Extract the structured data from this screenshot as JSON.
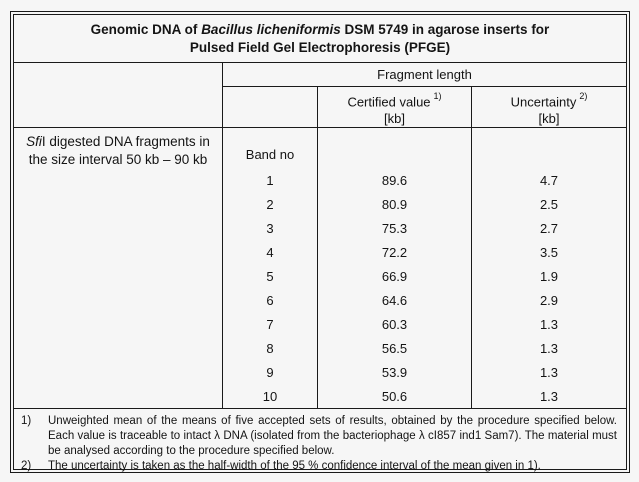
{
  "document": {
    "colors": {
      "background": "#f6f6f6",
      "border": "#1a1a1a",
      "text": "#141414"
    },
    "title": {
      "line1_pre": "Genomic DNA of ",
      "line1_italic": "Bacillus licheniformis",
      "line1_post": " DSM 5749 in agarose inserts for",
      "line2": "Pulsed Field Gel Electrophoresis (PFGE)"
    },
    "header": {
      "group": "Fragment length",
      "certified": {
        "label": "Certified value",
        "sup": "1)",
        "unit": "[kb]"
      },
      "uncertainty": {
        "label": "Uncertainty",
        "sup": "2)",
        "unit": "[kb]"
      }
    },
    "side_label": {
      "italic": "Sfi",
      "line1_rest": "I digested DNA fragments in",
      "line2": "the size interval 50 kb – 90 kb"
    },
    "band_header": "Band no",
    "rows": [
      {
        "band": "1",
        "certified": "89.6",
        "uncertainty": "4.7"
      },
      {
        "band": "2",
        "certified": "80.9",
        "uncertainty": "2.5"
      },
      {
        "band": "3",
        "certified": "75.3",
        "uncertainty": "2.7"
      },
      {
        "band": "4",
        "certified": "72.2",
        "uncertainty": "3.5"
      },
      {
        "band": "5",
        "certified": "66.9",
        "uncertainty": "1.9"
      },
      {
        "band": "6",
        "certified": "64.6",
        "uncertainty": "2.9"
      },
      {
        "band": "7",
        "certified": "60.3",
        "uncertainty": "1.3"
      },
      {
        "band": "8",
        "certified": "56.5",
        "uncertainty": "1.3"
      },
      {
        "band": "9",
        "certified": "53.9",
        "uncertainty": "1.3"
      },
      {
        "band": "10",
        "certified": "50.6",
        "uncertainty": "1.3"
      }
    ],
    "footnotes": [
      {
        "marker": "1)",
        "lines": [
          "Unweighted mean of the means of five accepted sets of results, obtained by the procedure specified below.",
          "Each value is traceable to intact λ DNA (isolated from the bacteriophage λ cI857 ind1 Sam7). The material must",
          "be analysed according to the procedure specified below."
        ]
      },
      {
        "marker": "2)",
        "lines": [
          "The uncertainty is taken as the half-width of the 95 % confidence interval of the mean given in 1)."
        ]
      }
    ]
  }
}
